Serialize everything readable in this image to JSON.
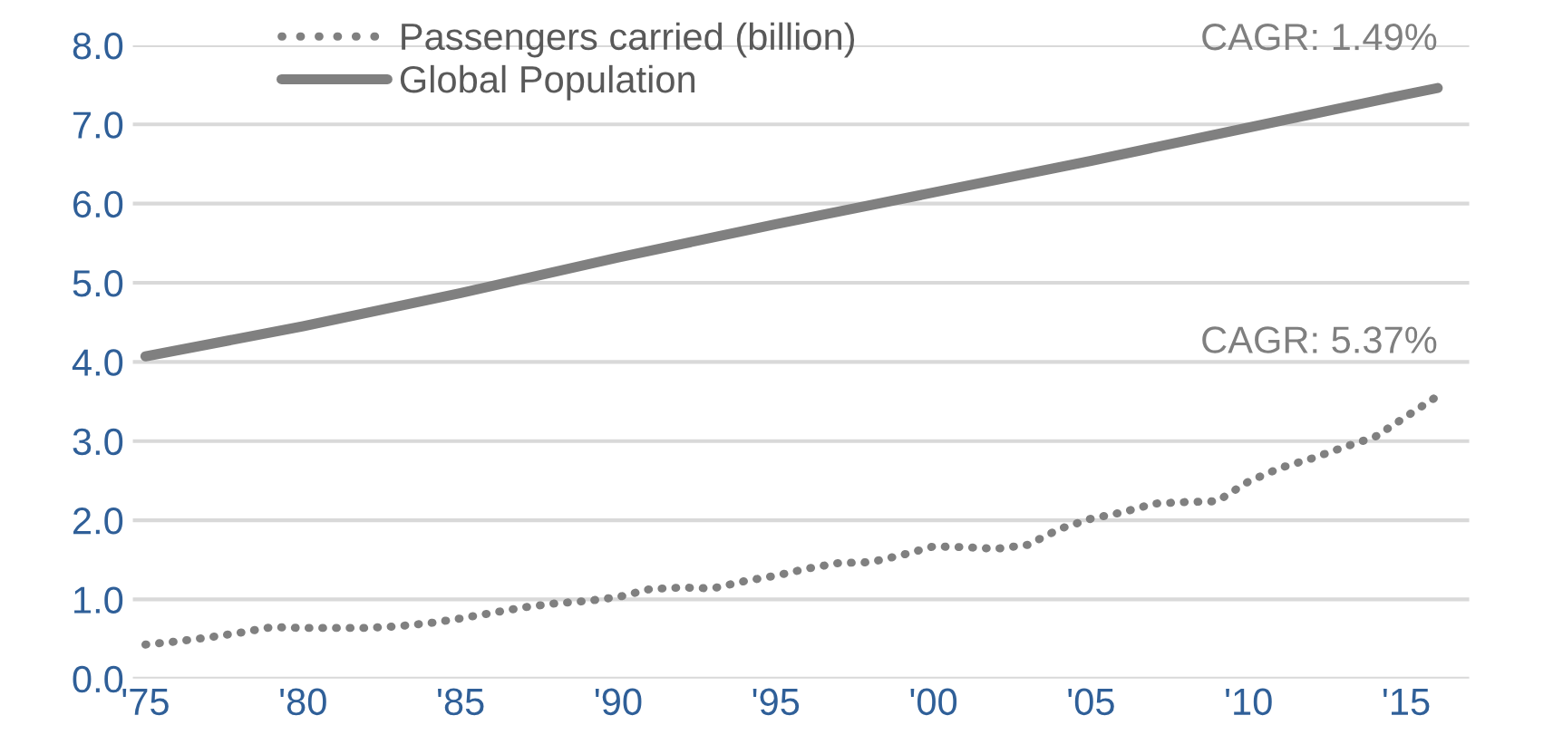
{
  "chart_data": {
    "type": "line",
    "series": [
      {
        "name": "Passengers carried (billion)",
        "color": "#808080",
        "line_style": "dotted",
        "x": [
          1975,
          1976,
          1977,
          1978,
          1979,
          1980,
          1981,
          1982,
          1983,
          1984,
          1985,
          1986,
          1987,
          1988,
          1989,
          1990,
          1991,
          1992,
          1993,
          1994,
          1995,
          1996,
          1997,
          1998,
          1999,
          2000,
          2001,
          2002,
          2003,
          2004,
          2005,
          2006,
          2007,
          2008,
          2009,
          2010,
          2011,
          2012,
          2013,
          2014,
          2015,
          2016
        ],
        "values": [
          0.43,
          0.47,
          0.52,
          0.58,
          0.65,
          0.64,
          0.64,
          0.64,
          0.66,
          0.7,
          0.76,
          0.83,
          0.9,
          0.95,
          0.98,
          1.03,
          1.13,
          1.15,
          1.14,
          1.23,
          1.3,
          1.39,
          1.46,
          1.47,
          1.56,
          1.67,
          1.66,
          1.64,
          1.69,
          1.89,
          2.02,
          2.1,
          2.21,
          2.23,
          2.24,
          2.49,
          2.66,
          2.78,
          2.92,
          3.05,
          3.31,
          3.57
        ]
      },
      {
        "name": "Global Population",
        "color": "#808080",
        "line_style": "solid",
        "x": [
          1975,
          1980,
          1985,
          1990,
          1995,
          2000,
          2005,
          2010,
          2015,
          2016
        ],
        "values": [
          4.07,
          4.45,
          4.87,
          5.32,
          5.74,
          6.14,
          6.54,
          6.96,
          7.38,
          7.46
        ]
      }
    ],
    "xlim": [
      1974.6,
      2017
    ],
    "xticks": [
      {
        "value": 1975,
        "label": "'75"
      },
      {
        "value": 1980,
        "label": "'80"
      },
      {
        "value": 1985,
        "label": "'85"
      },
      {
        "value": 1990,
        "label": "'90"
      },
      {
        "value": 1995,
        "label": "'95"
      },
      {
        "value": 2000,
        "label": "'00"
      },
      {
        "value": 2005,
        "label": "'05"
      },
      {
        "value": 2010,
        "label": "'10"
      },
      {
        "value": 2015,
        "label": "'15"
      }
    ],
    "ylim": [
      0,
      8
    ],
    "yticks": [
      {
        "value": 0,
        "label": "0.0"
      },
      {
        "value": 1,
        "label": "1.0"
      },
      {
        "value": 2,
        "label": "2.0"
      },
      {
        "value": 3,
        "label": "3.0"
      },
      {
        "value": 4,
        "label": "4.0"
      },
      {
        "value": 5,
        "label": "5.0"
      },
      {
        "value": 6,
        "label": "6.0"
      },
      {
        "value": 7,
        "label": "7.0"
      },
      {
        "value": 8,
        "label": "8.0"
      }
    ],
    "annotations": [
      {
        "text": "CAGR: 1.49%",
        "x": 2016,
        "y": 7.46
      },
      {
        "text": "CAGR: 5.37%",
        "x": 2016,
        "y": 3.57
      }
    ],
    "grid": "y",
    "legend": "top left",
    "marker": "none"
  }
}
